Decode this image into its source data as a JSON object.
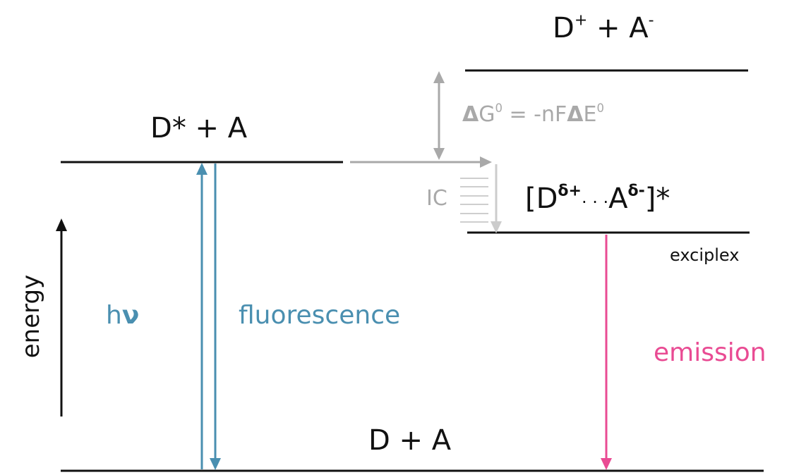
{
  "colors": {
    "black": "#111111",
    "gray": "#a9a9a9",
    "blue": "#4a8fb0",
    "pink": "#e94b93"
  },
  "levels": {
    "excited": {
      "base": "D",
      "star": "*",
      "plus": "+",
      "partner": "A"
    },
    "charge_separated": {
      "d": "D",
      "d_sup": "+",
      "plus": "+",
      "a": "A",
      "a_sup": "-"
    },
    "exciplex": {
      "open": "[D",
      "d_sup": "δ+",
      "dots": "· · ·",
      "a": "A",
      "a_sup": "δ-",
      "close": "]*"
    },
    "exciplex_caption": "exciplex",
    "ground": "D + A"
  },
  "gibbs": {
    "delta1": "Δ",
    "g": "G",
    "g_sup": "0",
    "mid": " = -nF",
    "delta2": "Δ",
    "e": "E",
    "e_sup": "0"
  },
  "ic_label": "IC",
  "energy_label": "energy",
  "absorption": {
    "h": "h",
    "nu": "ν"
  },
  "fluorescence_label": "fluorescence",
  "emission_label": "emission"
}
